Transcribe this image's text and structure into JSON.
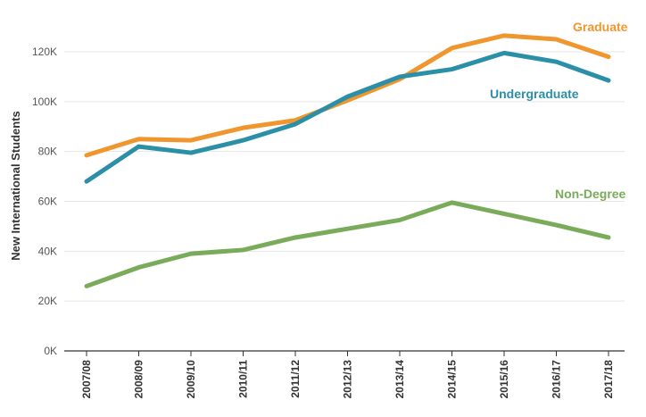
{
  "chart_data": {
    "type": "line",
    "title": "",
    "xlabel": "",
    "ylabel": "New International Students",
    "categories": [
      "2007/08",
      "2008/09",
      "2009/10",
      "2010/11",
      "2011/12",
      "2012/13",
      "2013/14",
      "2014/15",
      "2015/16",
      "2016/17",
      "2017/18"
    ],
    "ylim": [
      0,
      130000
    ],
    "yticks": [
      0,
      20000,
      40000,
      60000,
      80000,
      100000,
      120000
    ],
    "ytick_labels": [
      "0K",
      "20K",
      "40K",
      "60K",
      "80K",
      "100K",
      "120K"
    ],
    "grid": true,
    "legend": "inline labels",
    "series": [
      {
        "name": "Graduate",
        "color": "#f0962e",
        "values": [
          78500,
          85000,
          84500,
          89500,
          92500,
          100500,
          109000,
          121500,
          126500,
          125000,
          118000
        ]
      },
      {
        "name": "Undergraduate",
        "color": "#2b8fa8",
        "values": [
          68000,
          82000,
          79500,
          84500,
          91000,
          102000,
          110000,
          113000,
          119500,
          116000,
          108500
        ]
      },
      {
        "name": "Non-Degree",
        "color": "#7aab5a",
        "values": [
          26000,
          33500,
          39000,
          40500,
          45500,
          49000,
          52500,
          59500,
          55000,
          50500,
          45500
        ]
      }
    ]
  }
}
